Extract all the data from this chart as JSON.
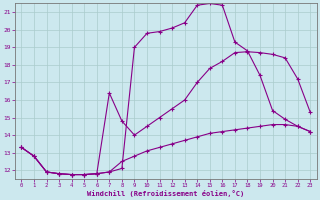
{
  "xlabel": "Windchill (Refroidissement éolien,°C)",
  "bg_color": "#cce8ee",
  "line_color": "#880088",
  "grid_color": "#aacccc",
  "xlim": [
    -0.5,
    23.5
  ],
  "ylim": [
    11.5,
    21.5
  ],
  "yticks": [
    12,
    13,
    14,
    15,
    16,
    17,
    18,
    19,
    20,
    21
  ],
  "xticks": [
    0,
    1,
    2,
    3,
    4,
    5,
    6,
    7,
    8,
    9,
    10,
    11,
    12,
    13,
    14,
    15,
    16,
    17,
    18,
    19,
    20,
    21,
    22,
    23
  ],
  "curve1_x": [
    0,
    1,
    2,
    3,
    4,
    5,
    6,
    7,
    8,
    9,
    10,
    11,
    12,
    13,
    14,
    15,
    16,
    17,
    18,
    19,
    20,
    21,
    22,
    23
  ],
  "curve1_y": [
    13.3,
    12.8,
    11.9,
    11.8,
    11.75,
    11.75,
    11.8,
    11.9,
    12.1,
    19.0,
    19.8,
    19.9,
    20.1,
    20.4,
    21.4,
    21.5,
    21.4,
    19.3,
    18.8,
    17.4,
    15.4,
    14.9,
    14.5,
    14.2
  ],
  "curve2_x": [
    0,
    1,
    2,
    3,
    4,
    5,
    6,
    7,
    8,
    9,
    10,
    11,
    12,
    13,
    14,
    15,
    16,
    17,
    18,
    19,
    20,
    21,
    22,
    23
  ],
  "curve2_y": [
    13.3,
    12.8,
    11.9,
    11.8,
    11.75,
    11.75,
    11.8,
    16.4,
    14.8,
    14.0,
    14.5,
    15.0,
    15.5,
    16.0,
    17.0,
    17.8,
    18.2,
    18.7,
    18.75,
    18.7,
    18.6,
    18.4,
    17.2,
    15.3
  ],
  "curve3_x": [
    0,
    1,
    2,
    3,
    4,
    5,
    6,
    7,
    8,
    9,
    10,
    11,
    12,
    13,
    14,
    15,
    16,
    17,
    18,
    19,
    20,
    21,
    22,
    23
  ],
  "curve3_y": [
    13.3,
    12.8,
    11.9,
    11.8,
    11.75,
    11.75,
    11.8,
    11.9,
    12.5,
    12.8,
    13.1,
    13.3,
    13.5,
    13.7,
    13.9,
    14.1,
    14.2,
    14.3,
    14.4,
    14.5,
    14.6,
    14.6,
    14.5,
    14.2
  ]
}
